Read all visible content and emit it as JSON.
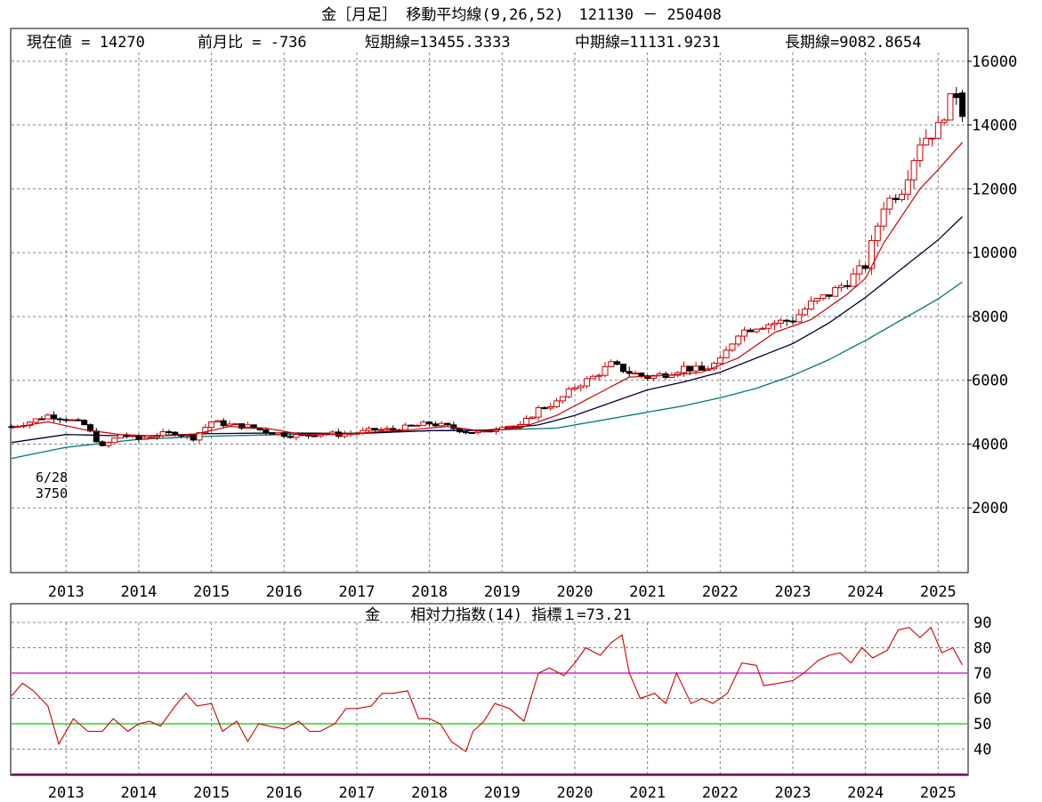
{
  "main_chart": {
    "title": "金［月足］ 移動平均線(9,26,52)　121130 － 250408",
    "info": {
      "current_label": "現在値 = 14270",
      "change_label": "前月比 = -736",
      "short_label": "短期線=13455.3333",
      "mid_label": "中期線=11131.9231",
      "long_label": "長期線=9082.8654"
    },
    "low_annotation": {
      "date": "6/28",
      "value": "3750"
    }
  },
  "sub_chart": {
    "title": "金　　相対力指数(14) 指標１=73.21"
  },
  "chart_data": [
    {
      "type": "candlestick",
      "title": "金［月足］ 移動平均線(9,26,52)",
      "period": "121130 - 250408",
      "x_start": 2012.25,
      "x_end": 2025.4,
      "ylim": [
        0,
        17000
      ],
      "y_ticks": [
        2000,
        4000,
        6000,
        8000,
        10000,
        12000,
        14000,
        16000
      ],
      "y_tick_labels": [
        "2000",
        "4000",
        "6000",
        "8000",
        "10000",
        "12000",
        "14000",
        "16000"
      ],
      "x_ticks": [
        2013,
        2014,
        2015,
        2016,
        2017,
        2018,
        2019,
        2020,
        2021,
        2022,
        2023,
        2024,
        2025
      ],
      "x_tick_labels": [
        "2013",
        "2014",
        "2015",
        "2016",
        "2017",
        "2018",
        "2019",
        "2020",
        "2021",
        "2022",
        "2023",
        "2024",
        "2025"
      ],
      "grid": true,
      "colors": {
        "up": "#cc0000",
        "down": "#000000",
        "ma_short": "#cc0000",
        "ma_mid": "#000033",
        "ma_long": "#007777",
        "grid": "#808080",
        "frame": "#000000"
      },
      "ohlc_close_keypoints": [
        [
          2012.25,
          4550
        ],
        [
          2012.5,
          4700
        ],
        [
          2012.75,
          4900
        ],
        [
          2013.0,
          4800
        ],
        [
          2013.25,
          4600
        ],
        [
          2013.5,
          3900
        ],
        [
          2013.75,
          4300
        ],
        [
          2014.0,
          4150
        ],
        [
          2014.25,
          4300
        ],
        [
          2014.5,
          4350
        ],
        [
          2014.75,
          4200
        ],
        [
          2015.0,
          4700
        ],
        [
          2015.25,
          4600
        ],
        [
          2015.5,
          4550
        ],
        [
          2015.75,
          4400
        ],
        [
          2016.0,
          4300
        ],
        [
          2016.25,
          4250
        ],
        [
          2016.5,
          4350
        ],
        [
          2016.75,
          4300
        ],
        [
          2017.0,
          4350
        ],
        [
          2017.25,
          4450
        ],
        [
          2017.5,
          4450
        ],
        [
          2017.75,
          4550
        ],
        [
          2018.0,
          4650
        ],
        [
          2018.25,
          4550
        ],
        [
          2018.5,
          4400
        ],
        [
          2018.75,
          4350
        ],
        [
          2019.0,
          4600
        ],
        [
          2019.25,
          4550
        ],
        [
          2019.5,
          5100
        ],
        [
          2019.75,
          5300
        ],
        [
          2020.0,
          5800
        ],
        [
          2020.25,
          6100
        ],
        [
          2020.5,
          6500
        ],
        [
          2020.75,
          6250
        ],
        [
          2021.0,
          6100
        ],
        [
          2021.25,
          6200
        ],
        [
          2021.5,
          6400
        ],
        [
          2021.75,
          6300
        ],
        [
          2022.0,
          6600
        ],
        [
          2022.25,
          7500
        ],
        [
          2022.5,
          7700
        ],
        [
          2022.75,
          7800
        ],
        [
          2023.0,
          7900
        ],
        [
          2023.25,
          8400
        ],
        [
          2023.5,
          8700
        ],
        [
          2023.75,
          9100
        ],
        [
          2024.0,
          9600
        ],
        [
          2024.25,
          11500
        ],
        [
          2024.5,
          12000
        ],
        [
          2024.75,
          13500
        ],
        [
          2025.0,
          13900
        ],
        [
          2025.1,
          14500
        ],
        [
          2025.25,
          15006
        ],
        [
          2025.333,
          14270
        ]
      ],
      "ma_short_keypoints": [
        [
          2012.25,
          4500
        ],
        [
          2012.75,
          4700
        ],
        [
          2013.25,
          4450
        ],
        [
          2013.75,
          4300
        ],
        [
          2014.25,
          4250
        ],
        [
          2014.75,
          4300
        ],
        [
          2015.25,
          4550
        ],
        [
          2015.75,
          4500
        ],
        [
          2016.25,
          4300
        ],
        [
          2016.75,
          4300
        ],
        [
          2017.25,
          4380
        ],
        [
          2017.75,
          4450
        ],
        [
          2018.25,
          4550
        ],
        [
          2018.75,
          4400
        ],
        [
          2019.25,
          4500
        ],
        [
          2019.75,
          4900
        ],
        [
          2020.25,
          5500
        ],
        [
          2020.75,
          6100
        ],
        [
          2021.25,
          6150
        ],
        [
          2021.75,
          6250
        ],
        [
          2022.25,
          6700
        ],
        [
          2022.75,
          7500
        ],
        [
          2023.25,
          7900
        ],
        [
          2023.75,
          8700
        ],
        [
          2024.0,
          9200
        ],
        [
          2024.25,
          10300
        ],
        [
          2024.75,
          12000
        ],
        [
          2025.0,
          12600
        ],
        [
          2025.333,
          13455
        ]
      ],
      "ma_mid_keypoints": [
        [
          2012.25,
          4050
        ],
        [
          2013.0,
          4300
        ],
        [
          2014.0,
          4250
        ],
        [
          2015.0,
          4330
        ],
        [
          2016.0,
          4350
        ],
        [
          2017.0,
          4330
        ],
        [
          2018.0,
          4420
        ],
        [
          2018.75,
          4430
        ],
        [
          2019.5,
          4600
        ],
        [
          2020.0,
          4900
        ],
        [
          2020.5,
          5300
        ],
        [
          2021.0,
          5700
        ],
        [
          2021.5,
          5950
        ],
        [
          2022.0,
          6250
        ],
        [
          2022.5,
          6700
        ],
        [
          2023.0,
          7150
        ],
        [
          2023.5,
          7800
        ],
        [
          2024.0,
          8600
        ],
        [
          2024.5,
          9500
        ],
        [
          2025.0,
          10400
        ],
        [
          2025.333,
          11132
        ]
      ],
      "ma_long_keypoints": [
        [
          2012.25,
          3550
        ],
        [
          2013.0,
          3900
        ],
        [
          2014.0,
          4150
        ],
        [
          2015.0,
          4250
        ],
        [
          2016.0,
          4300
        ],
        [
          2017.0,
          4350
        ],
        [
          2018.0,
          4420
        ],
        [
          2019.0,
          4450
        ],
        [
          2019.75,
          4500
        ],
        [
          2020.25,
          4700
        ],
        [
          2021.0,
          5000
        ],
        [
          2021.5,
          5200
        ],
        [
          2022.0,
          5450
        ],
        [
          2022.5,
          5750
        ],
        [
          2023.0,
          6150
        ],
        [
          2023.5,
          6650
        ],
        [
          2024.0,
          7250
        ],
        [
          2024.5,
          7900
        ],
        [
          2025.0,
          8550
        ],
        [
          2025.333,
          9083
        ]
      ]
    },
    {
      "type": "line",
      "title": "金　相対力指数(14)",
      "indicator_label": "指標１=73.21",
      "ylim": [
        30,
        97
      ],
      "y_ticks": [
        40,
        50,
        60,
        70,
        80,
        90
      ],
      "y_tick_labels": [
        "40",
        "50",
        "60",
        "70",
        "80",
        "90"
      ],
      "reference_lines": [
        {
          "value": 70,
          "color": "#cc00cc"
        },
        {
          "value": 50,
          "color": "#00cc00"
        }
      ],
      "x_ticks": [
        2013,
        2014,
        2015,
        2016,
        2017,
        2018,
        2019,
        2020,
        2021,
        2022,
        2023,
        2024,
        2025
      ],
      "x_tick_labels": [
        "2013",
        "2014",
        "2015",
        "2016",
        "2017",
        "2018",
        "2019",
        "2020",
        "2021",
        "2022",
        "2023",
        "2024",
        "2025"
      ],
      "series": [
        {
          "name": "RSI(14)",
          "color": "#cc0000",
          "x": [
            2012.25,
            2012.4,
            2012.55,
            2012.75,
            2012.9,
            2013.1,
            2013.3,
            2013.5,
            2013.65,
            2013.85,
            2014.0,
            2014.15,
            2014.3,
            2014.5,
            2014.65,
            2014.8,
            2015.0,
            2015.15,
            2015.35,
            2015.5,
            2015.65,
            2015.8,
            2016.0,
            2016.2,
            2016.35,
            2016.5,
            2016.7,
            2016.85,
            2017.0,
            2017.2,
            2017.35,
            2017.5,
            2017.7,
            2017.85,
            2018.0,
            2018.15,
            2018.3,
            2018.5,
            2018.6,
            2018.75,
            2018.9,
            2019.1,
            2019.3,
            2019.5,
            2019.65,
            2019.85,
            2020.0,
            2020.15,
            2020.35,
            2020.5,
            2020.65,
            2020.75,
            2020.9,
            2021.1,
            2021.25,
            2021.4,
            2021.6,
            2021.75,
            2021.9,
            2022.1,
            2022.3,
            2022.5,
            2022.6,
            2022.8,
            2023.0,
            2023.15,
            2023.35,
            2023.5,
            2023.65,
            2023.8,
            2023.95,
            2024.1,
            2024.3,
            2024.45,
            2024.6,
            2024.75,
            2024.9,
            2025.05,
            2025.2,
            2025.333
          ],
          "values": [
            61,
            66,
            63,
            57,
            42,
            52,
            47,
            47,
            52,
            47,
            50,
            51,
            49,
            57,
            62,
            57,
            58,
            47,
            51,
            43,
            50,
            49,
            48,
            51,
            47,
            47,
            50,
            56,
            56,
            57,
            62,
            62,
            63,
            52,
            52,
            50,
            43,
            39,
            47,
            51,
            58,
            56,
            51,
            70,
            72,
            69,
            74,
            80,
            77,
            82,
            85,
            70,
            60,
            62,
            58,
            70,
            58,
            60,
            58,
            62,
            74,
            73,
            65,
            66,
            67,
            70,
            75,
            77,
            78,
            74,
            80,
            76,
            79,
            87,
            88,
            84,
            88,
            78,
            80,
            73.21
          ]
        }
      ]
    }
  ]
}
